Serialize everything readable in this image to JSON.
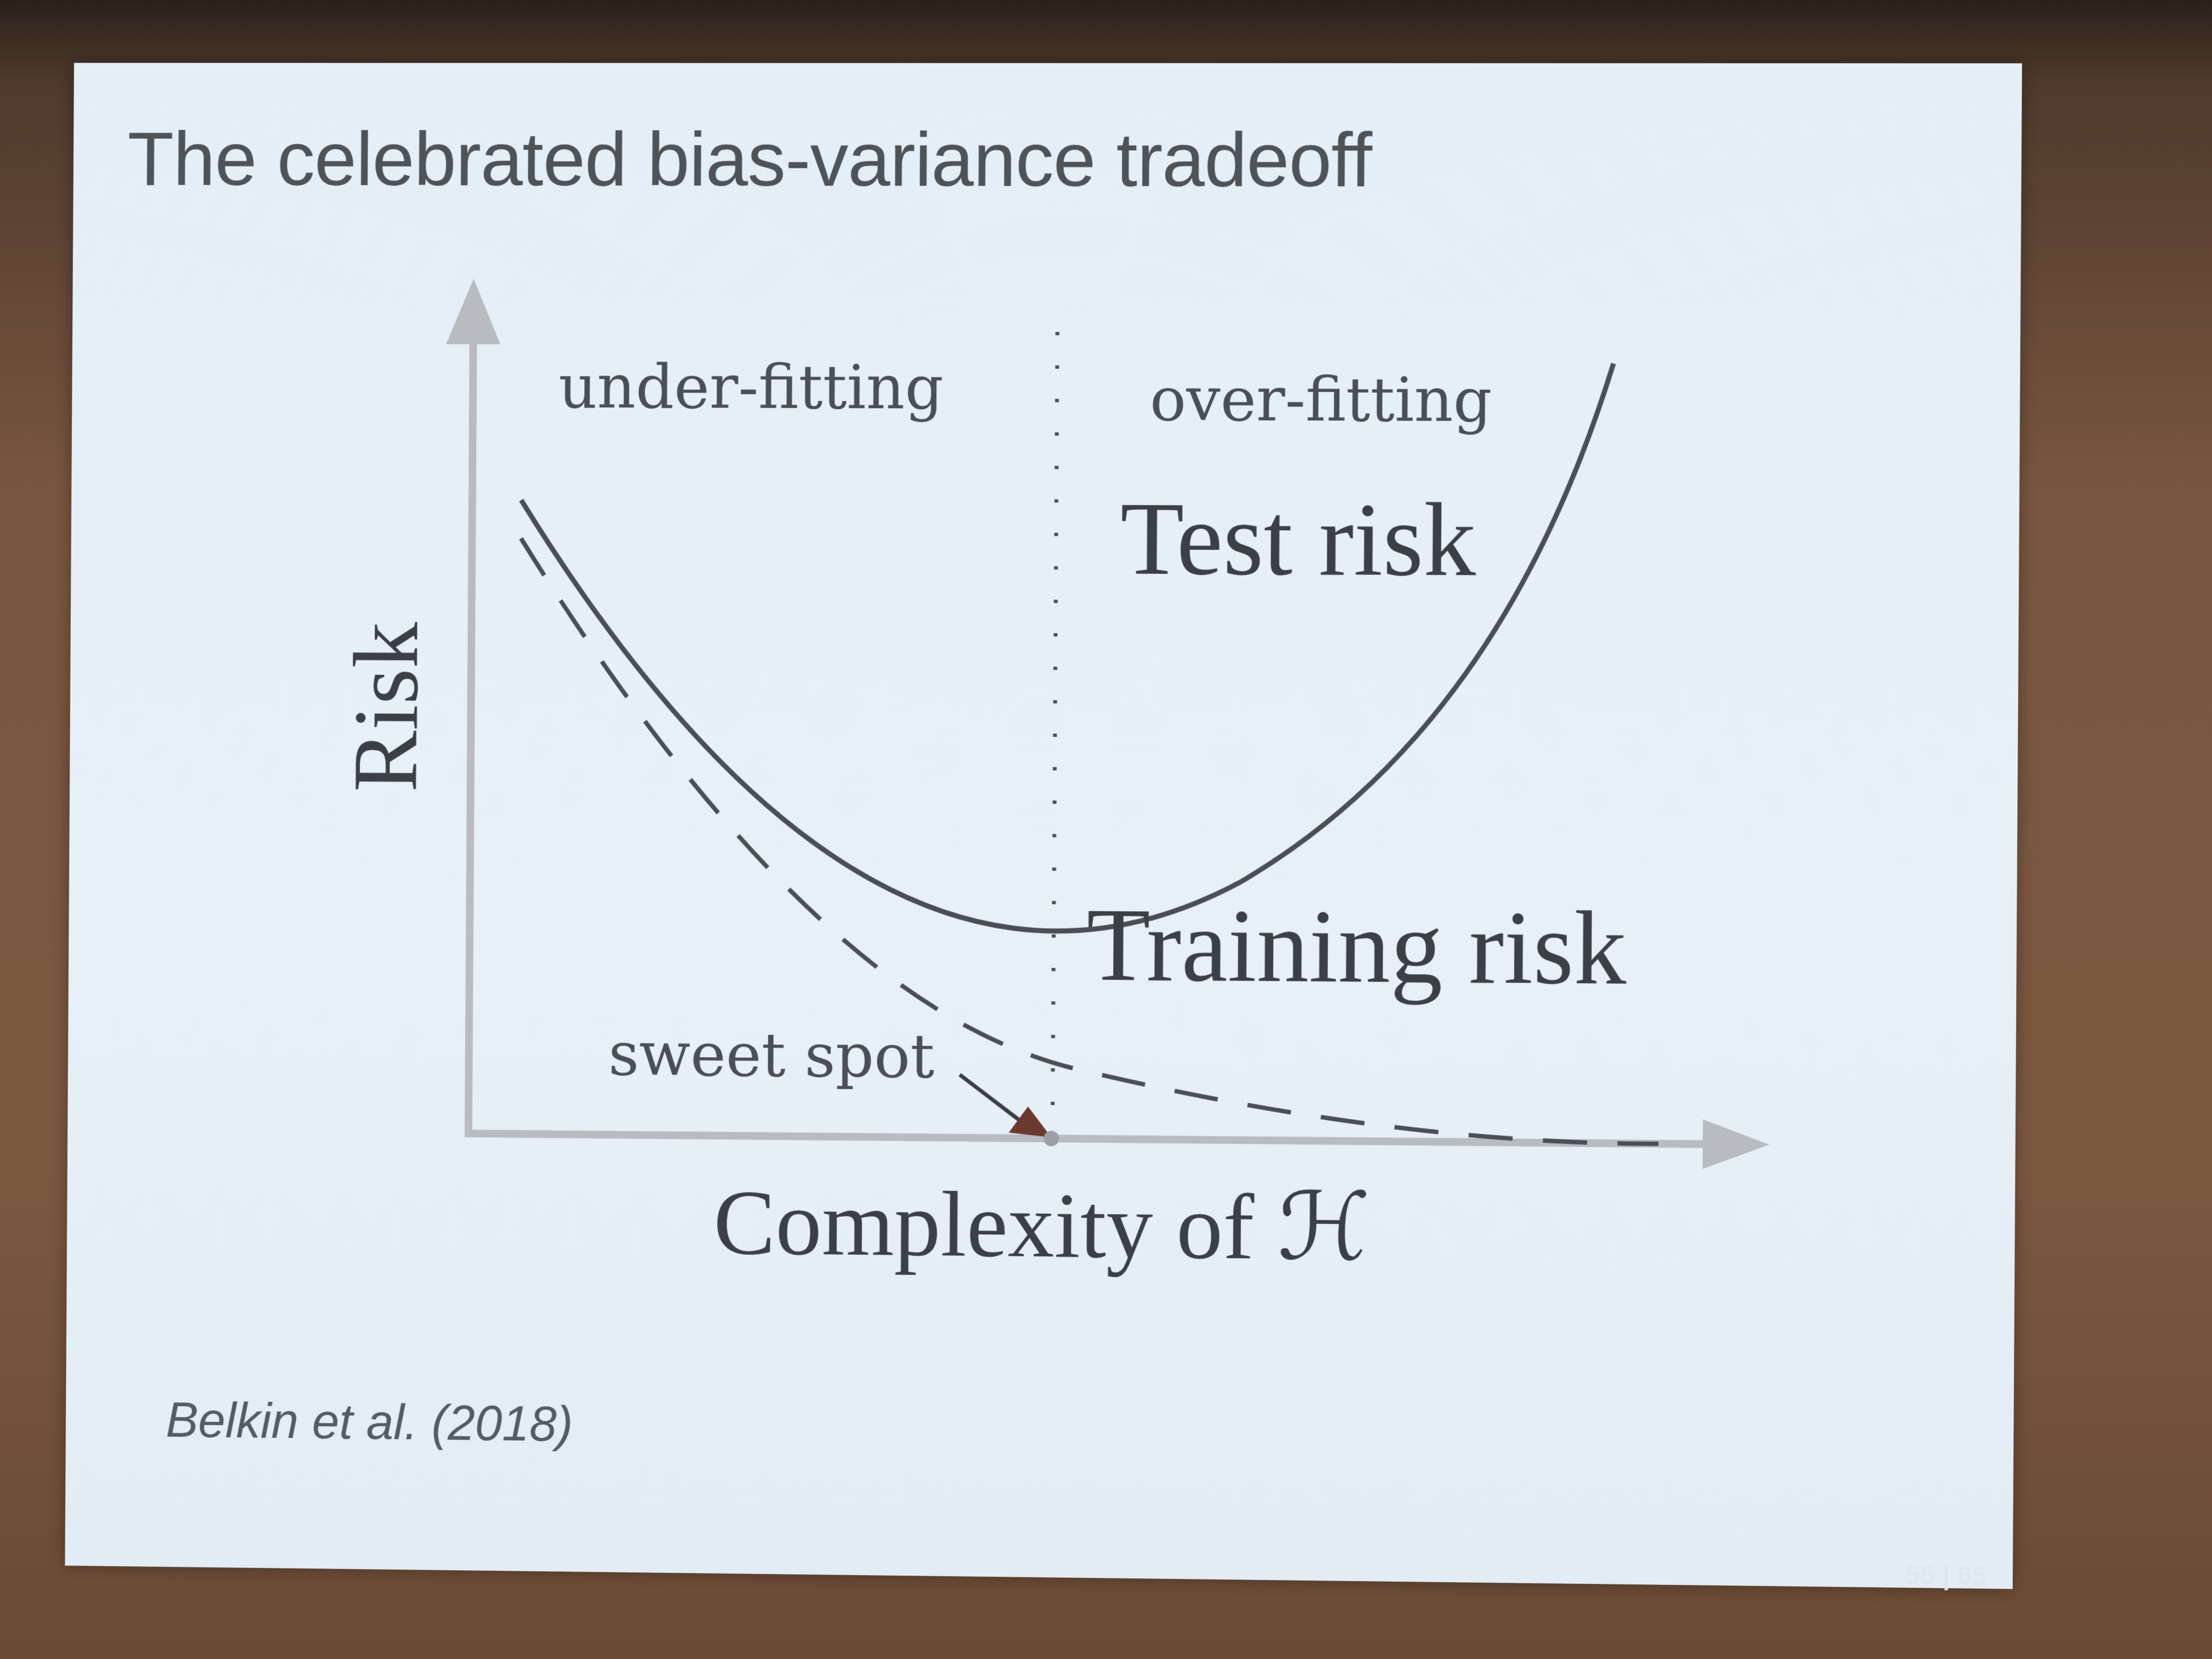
{
  "slide": {
    "title": "The celebrated bias-variance tradeoff",
    "citation": "Belkin et al. (2018)",
    "page_number": "55 | 65"
  },
  "diagram": {
    "y_axis_label": "Risk",
    "x_axis_label": "Complexity of ℋ",
    "region_left_label": "under-fitting",
    "region_right_label": "over-fitting",
    "test_curve_label": "Test risk",
    "training_curve_label": "Training risk",
    "sweet_spot_label": "sweet spot"
  },
  "colors": {
    "curve": "#4a4f55",
    "axis": "#b8bcc1",
    "arrow": "#6b3a2e"
  }
}
